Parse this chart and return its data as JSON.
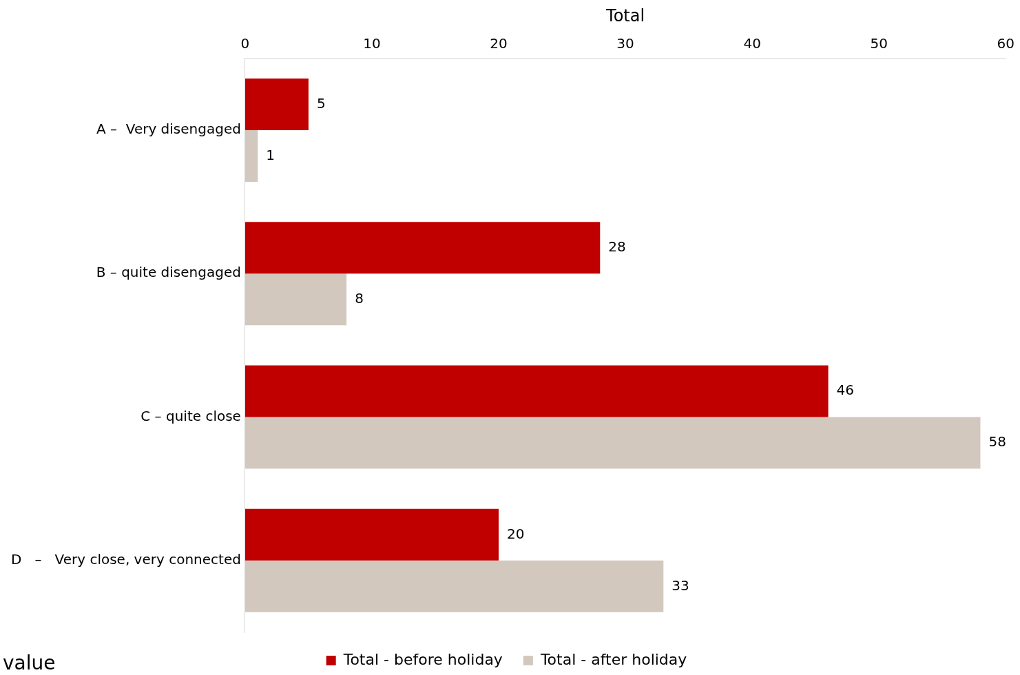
{
  "chart_data": {
    "type": "bar",
    "orientation": "horizontal",
    "xlabel": "Total",
    "categories": [
      "A –  Very disengaged",
      "B – quite disengaged",
      "C – quite close",
      "D   –   Very close, very connected"
    ],
    "series": [
      {
        "name": "Total - before holiday",
        "color": "#c00000",
        "values": [
          5,
          28,
          46,
          20
        ]
      },
      {
        "name": "Total - after holiday",
        "color": "#d3c8bd",
        "values": [
          1,
          8,
          58,
          33
        ]
      }
    ],
    "xlim": [
      0,
      60
    ],
    "xticks": [
      0,
      10,
      20,
      30,
      40,
      50,
      60
    ],
    "data_labels": true,
    "grid": false,
    "legend": "bottom",
    "annotations": [
      "value"
    ]
  }
}
